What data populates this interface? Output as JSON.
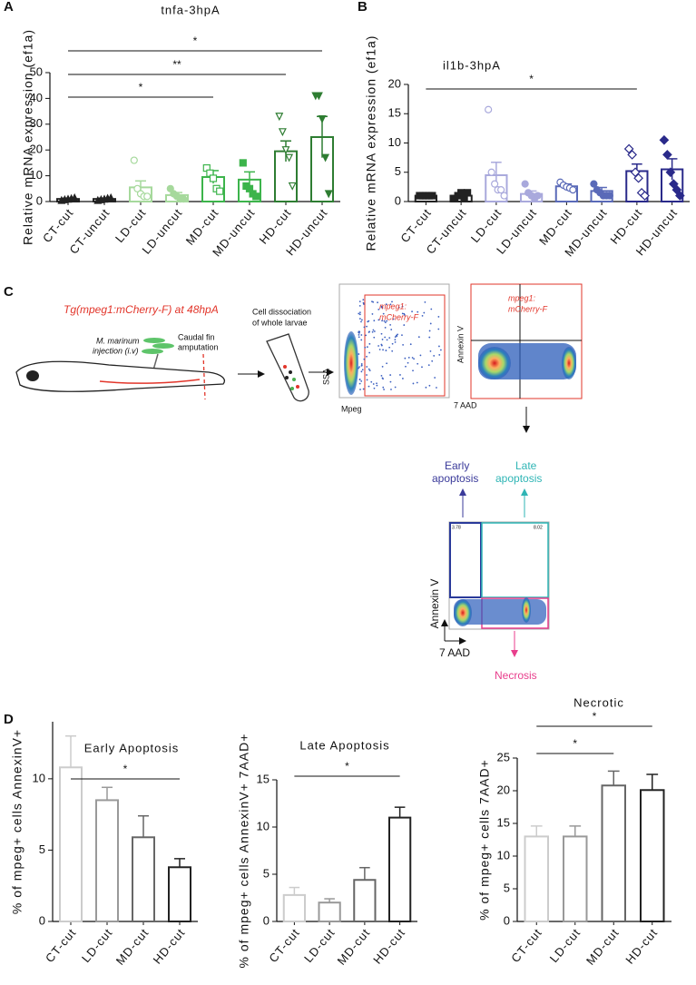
{
  "panels": [
    "A",
    "B",
    "C",
    "D"
  ],
  "chart_data": [
    {
      "type": "bar",
      "title": "tnfa-3hpA",
      "y_label": "Relative mRNA expression (ef1a)",
      "categories": [
        "CT-cut",
        "CT-uncut",
        "LD-cut",
        "LD-uncut",
        "MD-cut",
        "MD-uncut",
        "HD-cut",
        "HD-uncut"
      ],
      "values": [
        1,
        1,
        5.5,
        2.5,
        9.5,
        8.5,
        19.5,
        25
      ],
      "errors": [
        0.3,
        0.3,
        2.5,
        1,
        2.5,
        3,
        4,
        8
      ],
      "points": [
        [
          0.5,
          0.8,
          1,
          1.2,
          1.5
        ],
        [
          0.5,
          0.8,
          1,
          1.3,
          1.5
        ],
        [
          16,
          5,
          3,
          2,
          2
        ],
        [
          5,
          3,
          2,
          1,
          1
        ],
        [
          13,
          11,
          9,
          5,
          4
        ],
        [
          15,
          6,
          5,
          3,
          2
        ],
        [
          33,
          27,
          20,
          17,
          6
        ],
        [
          41,
          41,
          32,
          17,
          3
        ]
      ],
      "colors": [
        "#222222",
        "#222222",
        "#a6d99c",
        "#a6d99c",
        "#3cb44b",
        "#3cb44b",
        "#2e7d32",
        "#2e7d32"
      ],
      "markers": [
        "triangle",
        "triangle",
        "circle",
        "circle",
        "square",
        "square",
        "triangle-down",
        "triangle-down"
      ],
      "filled": [
        true,
        true,
        false,
        true,
        false,
        true,
        false,
        true
      ],
      "ylim": [
        0,
        50
      ],
      "yticks": [
        0,
        10,
        20,
        30,
        40,
        50
      ],
      "significance": [
        {
          "from": "CT-cut",
          "to": "MD-cut",
          "label": "*"
        },
        {
          "from": "CT-cut",
          "to": "HD-cut",
          "label": "**"
        },
        {
          "from": "CT-cut",
          "to": "HD-uncut",
          "label": "*"
        }
      ]
    },
    {
      "type": "bar",
      "title": "il1b-3hpA",
      "y_label": "Relative mRNA expression (ef1a)",
      "categories": [
        "CT-cut",
        "CT-uncut",
        "LD-cut",
        "LD-uncut",
        "MD-cut",
        "MD-uncut",
        "HD-cut",
        "HD-uncut"
      ],
      "values": [
        1,
        1,
        4.5,
        1.3,
        2.6,
        1.8,
        5.2,
        5.5
      ],
      "errors": [
        0.2,
        0.4,
        2.2,
        0.5,
        0.4,
        0.6,
        1.2,
        1.8
      ],
      "points": [
        [
          1,
          1,
          1,
          1,
          1
        ],
        [
          0.5,
          1,
          1.5,
          0.5,
          1.5
        ],
        [
          15.7,
          5,
          3,
          2,
          2,
          1
        ],
        [
          3,
          1.5,
          1,
          0.5,
          1
        ],
        [
          3.3,
          2.8,
          2.5,
          2.3,
          2
        ],
        [
          3,
          2,
          1.5,
          1,
          1,
          1
        ],
        [
          9,
          8,
          5,
          4,
          1.5,
          1
        ],
        [
          10.5,
          8,
          5,
          3,
          2,
          1
        ]
      ],
      "colors": [
        "#222222",
        "#222222",
        "#a9a9dc",
        "#a9a9dc",
        "#5a6ab8",
        "#5a6ab8",
        "#2a2a8a",
        "#2a2a8a"
      ],
      "markers": [
        "square",
        "square",
        "circle",
        "circle",
        "circle",
        "circle",
        "diamond",
        "diamond"
      ],
      "filled": [
        true,
        true,
        false,
        true,
        false,
        true,
        false,
        true
      ],
      "ylim": [
        0,
        20
      ],
      "yticks": [
        0,
        5,
        10,
        15,
        20
      ],
      "significance": [
        {
          "from": "CT-cut",
          "to": "HD-cut",
          "label": "*"
        }
      ]
    },
    {
      "type": "bar",
      "title": "Early Apoptosis",
      "y_label": "% of mpeg+ cells AnnexinV+",
      "categories": [
        "CT-cut",
        "LD-cut",
        "MD-cut",
        "HD-cut"
      ],
      "values": [
        10.8,
        8.5,
        5.9,
        3.8
      ],
      "errors": [
        2.2,
        0.9,
        1.5,
        0.6
      ],
      "colors": [
        "#cccccc",
        "#999999",
        "#666666",
        "#222222"
      ],
      "ylim": [
        0,
        14
      ],
      "yticks": [
        0,
        5,
        10
      ],
      "significance": [
        {
          "from": "CT-cut",
          "to": "HD-cut",
          "label": "*"
        }
      ]
    },
    {
      "type": "bar",
      "title": "Late Apoptosis",
      "y_label": "% of mpeg+ cells AnnexinV+ 7AAD+",
      "categories": [
        "CT-cut",
        "LD-cut",
        "MD-cut",
        "HD-cut"
      ],
      "values": [
        2.8,
        2.0,
        4.4,
        11.0
      ],
      "errors": [
        0.8,
        0.4,
        1.3,
        1.1
      ],
      "colors": [
        "#cccccc",
        "#999999",
        "#666666",
        "#222222"
      ],
      "ylim": [
        0,
        15
      ],
      "yticks": [
        0,
        5,
        10,
        15
      ],
      "significance": [
        {
          "from": "CT-cut",
          "to": "HD-cut",
          "label": "*"
        }
      ]
    },
    {
      "type": "bar",
      "title": "Necrotic",
      "y_label": "% of mpeg+ cells 7AAD+",
      "categories": [
        "CT-cut",
        "LD-cut",
        "MD-cut",
        "HD-cut"
      ],
      "values": [
        13,
        13,
        20.8,
        20.1
      ],
      "errors": [
        1.6,
        1.6,
        2.2,
        2.4
      ],
      "colors": [
        "#cccccc",
        "#999999",
        "#666666",
        "#222222"
      ],
      "ylim": [
        0,
        25
      ],
      "yticks": [
        0,
        5,
        10,
        15,
        20,
        25
      ],
      "significance": [
        {
          "from": "CT-cut",
          "to": "MD-cut",
          "label": "*"
        },
        {
          "from": "CT-cut",
          "to": "HD-cut",
          "label": "*"
        }
      ]
    }
  ],
  "diagram": {
    "strain": "Tg(mpeg1:mCherry-F) at 48hpA",
    "injection": [
      "M. marinum",
      "injection (i.v)"
    ],
    "amputation": [
      "Caudal fin",
      "amputation"
    ],
    "dissociation": [
      "Cell dissociation",
      "of whole larvae"
    ],
    "gate1": [
      "mpeg1:",
      "mCherry-F"
    ],
    "gate2": [
      "mpeg1:",
      "mCherry-F"
    ],
    "plot1_axes": [
      "SSA",
      "Mpeg"
    ],
    "plot2_axes": [
      "Annexin V",
      "7 AAD"
    ],
    "early": [
      "Early",
      "apoptosis"
    ],
    "late": [
      "Late",
      "apoptosis"
    ],
    "plot3_axes": [
      "Annexin V",
      "7 AAD"
    ],
    "plot3_numbers": [
      "3.78",
      "8.02"
    ],
    "necrosis": "Necrosis"
  }
}
